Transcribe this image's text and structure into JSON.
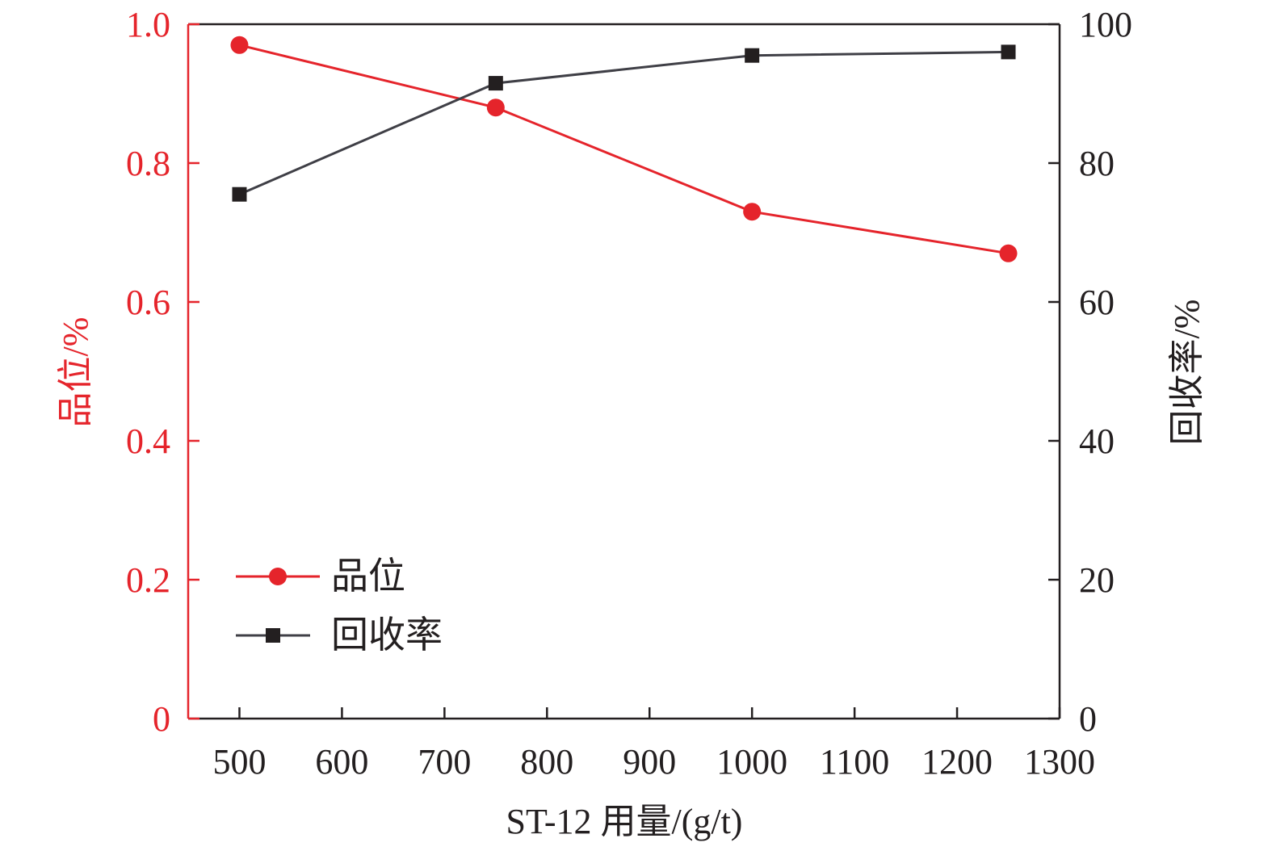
{
  "chart_data": {
    "type": "line",
    "xlabel": "ST-12 用量/(g/t)",
    "ylabel_left": "品位/%",
    "ylabel_right": "回收率/%",
    "x": [
      500,
      750,
      1000,
      1250
    ],
    "xlim": [
      450,
      1300
    ],
    "x_ticks": [
      500,
      600,
      700,
      800,
      900,
      1000,
      1100,
      1200,
      1300
    ],
    "ylim_left": [
      0,
      1.0
    ],
    "y_ticks_left": [
      "0",
      "0.2",
      "0.4",
      "0.6",
      "0.8",
      "1.0"
    ],
    "ylim_right": [
      0,
      100
    ],
    "y_ticks_right": [
      "0",
      "20",
      "40",
      "60",
      "80",
      "100"
    ],
    "grid": false,
    "legend_position": "bottom-left",
    "series": [
      {
        "name": "品位",
        "axis": "left",
        "marker": "circle",
        "color": "#e5242b",
        "values": [
          0.97,
          0.88,
          0.73,
          0.67
        ]
      },
      {
        "name": "回收率",
        "axis": "right",
        "marker": "square",
        "color": "#231f20",
        "line_color": "#3f3f46",
        "values": [
          75.5,
          91.5,
          95.5,
          96.0
        ]
      }
    ]
  },
  "colors": {
    "left_axis": "#e5242b",
    "right_axis": "#231f20",
    "frame": "#231f20"
  }
}
